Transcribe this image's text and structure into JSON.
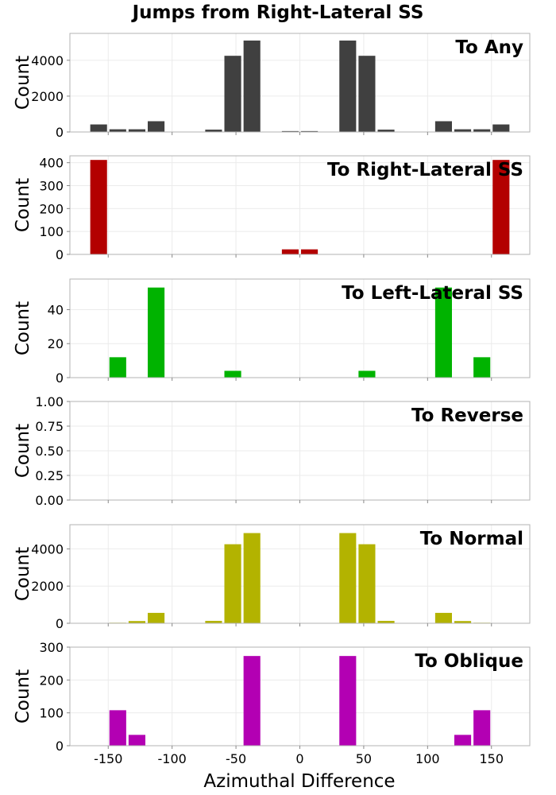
{
  "title": "Jumps from Right-Lateral SS",
  "xlabel": "Azimuthal Difference",
  "chart_data": [
    {
      "type": "bar",
      "title": "To Any",
      "ylabel": "Count",
      "color": "#404040",
      "ylim": [
        0,
        5500
      ],
      "yticks": [
        0,
        2000,
        4000
      ],
      "xlim": [
        -180,
        180
      ],
      "xticks": [
        -150,
        -100,
        -50,
        0,
        50,
        100,
        150
      ],
      "bin_width": 15,
      "x": [
        -157.5,
        -142.5,
        -127.5,
        -112.5,
        -67.5,
        -52.5,
        -37.5,
        -7.5,
        7.5,
        37.5,
        52.5,
        67.5,
        112.5,
        127.5,
        142.5,
        157.5
      ],
      "values": [
        420,
        150,
        150,
        600,
        130,
        4250,
        5100,
        50,
        50,
        5100,
        4250,
        130,
        600,
        150,
        150,
        420
      ]
    },
    {
      "type": "bar",
      "title": "To Right-Lateral SS",
      "ylabel": "Count",
      "color": "#b30000",
      "ylim": [
        0,
        430
      ],
      "yticks": [
        0,
        100,
        200,
        300,
        400
      ],
      "xlim": [
        -180,
        180
      ],
      "xticks": [
        -150,
        -100,
        -50,
        0,
        50,
        100,
        150
      ],
      "bin_width": 15,
      "x": [
        -157.5,
        -7.5,
        7.5,
        157.5
      ],
      "values": [
        412,
        22,
        22,
        412
      ]
    },
    {
      "type": "bar",
      "title": "To Left-Lateral SS",
      "ylabel": "Count",
      "color": "#00b300",
      "ylim": [
        0,
        58
      ],
      "yticks": [
        0,
        20,
        40
      ],
      "xlim": [
        -180,
        180
      ],
      "xticks": [
        -150,
        -100,
        -50,
        0,
        50,
        100,
        150
      ],
      "bin_width": 15,
      "x": [
        -142.5,
        -112.5,
        -52.5,
        52.5,
        112.5,
        142.5
      ],
      "values": [
        12,
        53,
        4,
        4,
        53,
        12
      ]
    },
    {
      "type": "bar",
      "title": "To Reverse",
      "ylabel": "Count",
      "color": "#888888",
      "ylim": [
        0,
        1
      ],
      "yticks": [
        0,
        0.25,
        0.5,
        0.75,
        1
      ],
      "ytick_labels": [
        "0.00",
        "0.25",
        "0.50",
        "0.75",
        "1.00"
      ],
      "xlim": [
        -180,
        180
      ],
      "xticks": [
        -150,
        -100,
        -50,
        0,
        50,
        100,
        150
      ],
      "bin_width": 15,
      "x": [],
      "values": []
    },
    {
      "type": "bar",
      "title": "To Normal",
      "ylabel": "Count",
      "color": "#b3b300",
      "ylim": [
        0,
        5300
      ],
      "yticks": [
        0,
        2000,
        4000
      ],
      "xlim": [
        -180,
        180
      ],
      "xticks": [
        -150,
        -100,
        -50,
        0,
        50,
        100,
        150
      ],
      "bin_width": 15,
      "x": [
        -142.5,
        -127.5,
        -112.5,
        -67.5,
        -52.5,
        -37.5,
        37.5,
        52.5,
        67.5,
        112.5,
        127.5,
        142.5
      ],
      "values": [
        30,
        120,
        560,
        130,
        4250,
        4850,
        4850,
        4250,
        130,
        560,
        120,
        30
      ]
    },
    {
      "type": "bar",
      "title": "To Oblique",
      "ylabel": "Count",
      "color": "#b300b3",
      "ylim": [
        0,
        300
      ],
      "yticks": [
        0,
        100,
        200,
        300
      ],
      "xlim": [
        -180,
        180
      ],
      "xticks": [
        -150,
        -100,
        -50,
        0,
        50,
        100,
        150
      ],
      "bin_width": 15,
      "x": [
        -142.5,
        -127.5,
        -37.5,
        37.5,
        127.5,
        142.5
      ],
      "values": [
        108,
        33,
        273,
        273,
        33,
        108
      ]
    }
  ]
}
